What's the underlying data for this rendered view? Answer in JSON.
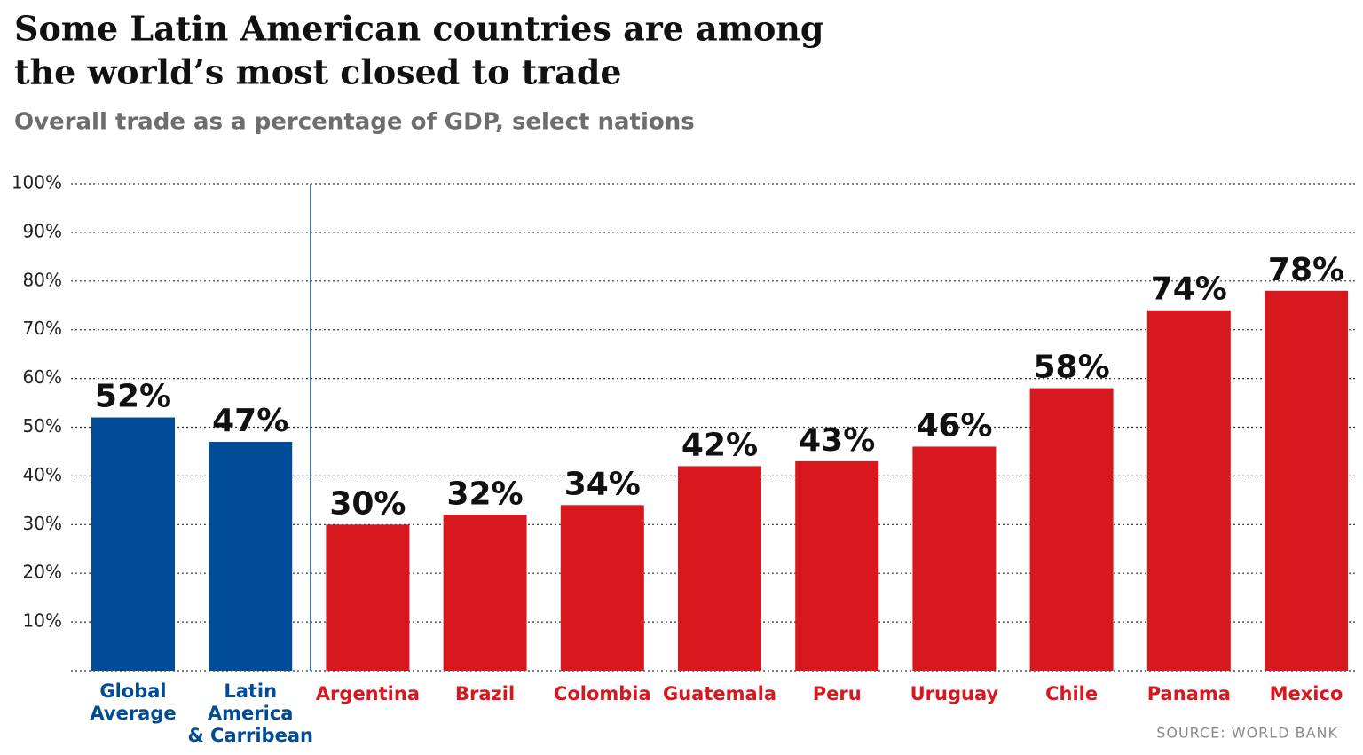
{
  "chart_data": {
    "type": "bar",
    "title": [
      "Some Latin American countries are among",
      "the world’s most closed to trade"
    ],
    "subtitle": "Overall trade as a percentage of GDP, select nations",
    "source": "SOURCE: WORLD BANK",
    "categories": [
      [
        "Global",
        "Average"
      ],
      [
        "Latin",
        "America",
        "& Carribean"
      ],
      [
        "Argentina"
      ],
      [
        "Brazil"
      ],
      [
        "Colombia"
      ],
      [
        "Guatemala"
      ],
      [
        "Peru"
      ],
      [
        "Uruguay"
      ],
      [
        "Chile"
      ],
      [
        "Panama"
      ],
      [
        "Mexico"
      ]
    ],
    "values": [
      52,
      47,
      30,
      32,
      34,
      42,
      43,
      46,
      58,
      74,
      78
    ],
    "value_labels": [
      "52%",
      "47%",
      "30%",
      "32%",
      "34%",
      "42%",
      "43%",
      "46%",
      "58%",
      "74%",
      "78%"
    ],
    "colors": [
      "#004c97",
      "#004c97",
      "#d7191f",
      "#d7191f",
      "#d7191f",
      "#d7191f",
      "#d7191f",
      "#d7191f",
      "#d7191f",
      "#d7191f",
      "#d7191f"
    ],
    "ylim": [
      0,
      100
    ],
    "yticks": [
      {
        "value": 10,
        "label": "10%"
      },
      {
        "value": 20,
        "label": "20%"
      },
      {
        "value": 30,
        "label": "30%"
      },
      {
        "value": 40,
        "label": "40%"
      },
      {
        "value": 50,
        "label": "50%"
      },
      {
        "value": 60,
        "label": "60%"
      },
      {
        "value": 70,
        "label": "70%"
      },
      {
        "value": 80,
        "label": "80%"
      },
      {
        "value": 90,
        "label": "90%"
      },
      {
        "value": 100,
        "label": "100%"
      }
    ],
    "grid": true
  }
}
